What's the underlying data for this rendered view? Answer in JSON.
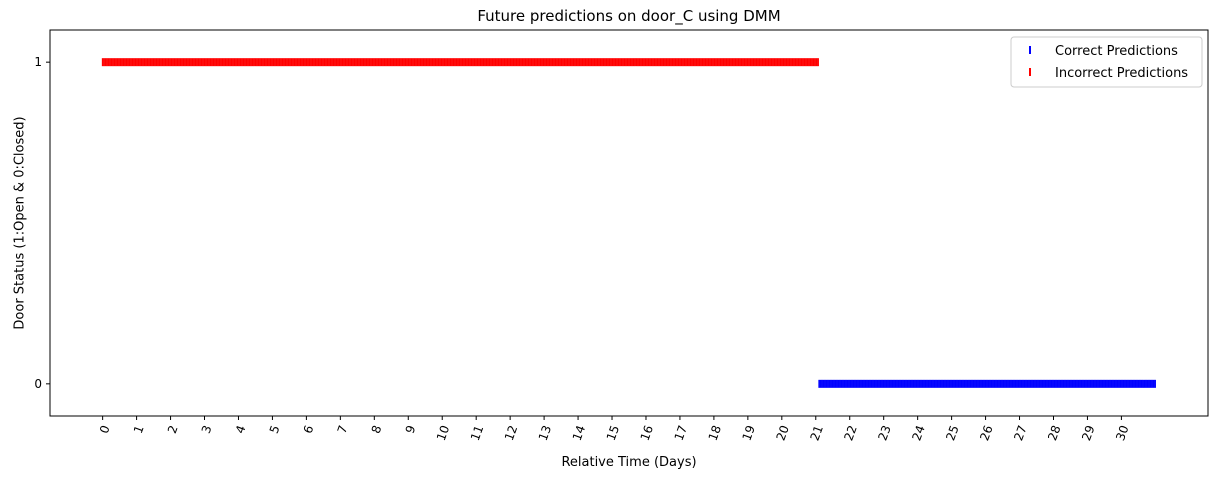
{
  "chart_data": {
    "type": "scatter",
    "title": "Future predictions on door_C using DMM",
    "xlabel": "Relative Time (Days)",
    "ylabel": "Door Status (1:Open & 0:Closed)",
    "xlim": [
      -1.55,
      32.55
    ],
    "ylim": [
      -0.1,
      1.1
    ],
    "x_ticks": [
      "0",
      "1",
      "2",
      "3",
      "4",
      "5",
      "6",
      "7",
      "8",
      "9",
      "10",
      "11",
      "12",
      "13",
      "14",
      "15",
      "16",
      "17",
      "18",
      "19",
      "20",
      "21",
      "22",
      "23",
      "24",
      "25",
      "26",
      "27",
      "28",
      "29",
      "30"
    ],
    "y_ticks": [
      "0",
      "1"
    ],
    "legend_position": "top-right",
    "grid": false,
    "series": [
      {
        "name": "Correct Predictions",
        "color": "#0000ff",
        "marker": "vertical-line",
        "y": 0,
        "x_range": [
          21.1,
          31.0
        ]
      },
      {
        "name": "Incorrect Predictions",
        "color": "#ff0000",
        "marker": "vertical-line",
        "y": 1,
        "x_range": [
          0.0,
          21.1
        ]
      }
    ]
  }
}
